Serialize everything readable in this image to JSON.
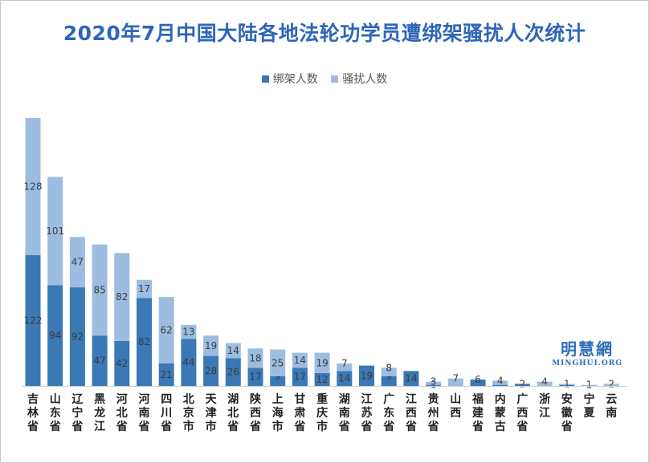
{
  "chart_data": {
    "type": "bar",
    "stacked": true,
    "title": "2020年7月中国大陆各地法轮功学员遭绑架骚扰人次统计",
    "xlabel": "",
    "ylabel": "",
    "grid": false,
    "legend_position": "top",
    "categories": [
      "吉林省",
      "山东省",
      "辽宁省",
      "黑龙江",
      "河北省",
      "河南省",
      "四川省",
      "北京市",
      "天津市",
      "湖北省",
      "陕西省",
      "上海市",
      "甘肃省",
      "重庆市",
      "湖南省",
      "江苏省",
      "广东省",
      "江西省",
      "贵州省",
      "山西",
      "福建省",
      "内蒙古",
      "广西省",
      "浙江",
      "安徽省",
      "宁夏",
      "云南"
    ],
    "series": [
      {
        "name": "绑架人数",
        "color": "#3a78b6",
        "values": [
          122,
          94,
          92,
          47,
          42,
          82,
          21,
          44,
          28,
          26,
          17,
          9,
          17,
          12,
          14,
          19,
          9,
          14,
          1,
          0,
          6,
          1,
          2,
          0,
          1,
          0,
          0
        ],
        "labels": [
          "122",
          "94",
          "92",
          "47",
          "42",
          "82",
          "21",
          "44",
          "28",
          "26",
          "17",
          "9",
          "17",
          "12",
          "14",
          "19",
          "9",
          "14",
          "1",
          "",
          "6",
          "",
          "2",
          "",
          "",
          "",
          ""
        ]
      },
      {
        "name": "骚扰人数",
        "color": "#9dbde0",
        "values": [
          128,
          101,
          47,
          85,
          82,
          17,
          62,
          13,
          19,
          14,
          18,
          25,
          14,
          19,
          7,
          0,
          8,
          0,
          3,
          7,
          0,
          4,
          0,
          4,
          1,
          1,
          2
        ],
        "labels": [
          "128",
          "101",
          "47",
          "85",
          "82",
          "17",
          "62",
          "13",
          "19",
          "14",
          "18",
          "25",
          "14",
          "19",
          "7",
          "",
          "8",
          "",
          "3",
          "7",
          "",
          "4",
          "",
          "4",
          "1",
          "1",
          "2"
        ]
      }
    ]
  },
  "watermark": {
    "brand": "明慧網",
    "site": "MINGHUI.ORG"
  }
}
